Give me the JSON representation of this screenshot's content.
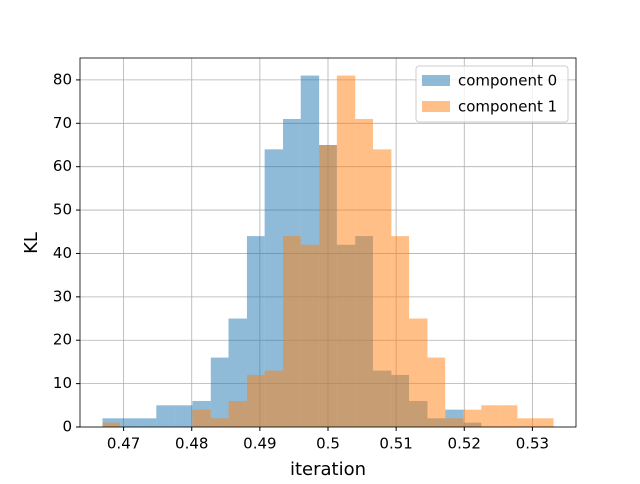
{
  "chart_data": {
    "type": "histogram",
    "xlabel": "iteration",
    "ylabel": "KL",
    "bins": [
      0.4669,
      0.4695,
      0.4722,
      0.4748,
      0.4775,
      0.4801,
      0.4828,
      0.4854,
      0.4881,
      0.4907,
      0.4934,
      0.496,
      0.4987,
      0.5013,
      0.504,
      0.5066,
      0.5093,
      0.5119,
      0.5146,
      0.5172,
      0.5199,
      0.5225,
      0.5252,
      0.5278,
      0.5305,
      0.5331
    ],
    "series": [
      {
        "name": "component 0",
        "color": "#1f77b4",
        "values": [
          2,
          2,
          2,
          5,
          5,
          6,
          16,
          25,
          44,
          64,
          71,
          81,
          65,
          42,
          44,
          13,
          12,
          6,
          2,
          4,
          1,
          0,
          0,
          0,
          0
        ]
      },
      {
        "name": "component 1",
        "color": "#ff7f0e",
        "values": [
          1,
          0,
          0,
          0,
          0,
          4,
          2,
          6,
          12,
          13,
          44,
          42,
          65,
          81,
          71,
          64,
          44,
          25,
          16,
          2,
          4,
          5,
          5,
          2,
          2
        ]
      }
    ],
    "opacity": 0.5,
    "xlim": [
      0.4636,
      0.5364
    ],
    "ylim": [
      0,
      85.05
    ],
    "xticks": [
      0.47,
      0.48,
      0.49,
      0.5,
      0.51,
      0.52,
      0.53
    ],
    "yticks": [
      0,
      10,
      20,
      30,
      40,
      50,
      60,
      70,
      80
    ],
    "grid": true,
    "legend": "upper right"
  }
}
